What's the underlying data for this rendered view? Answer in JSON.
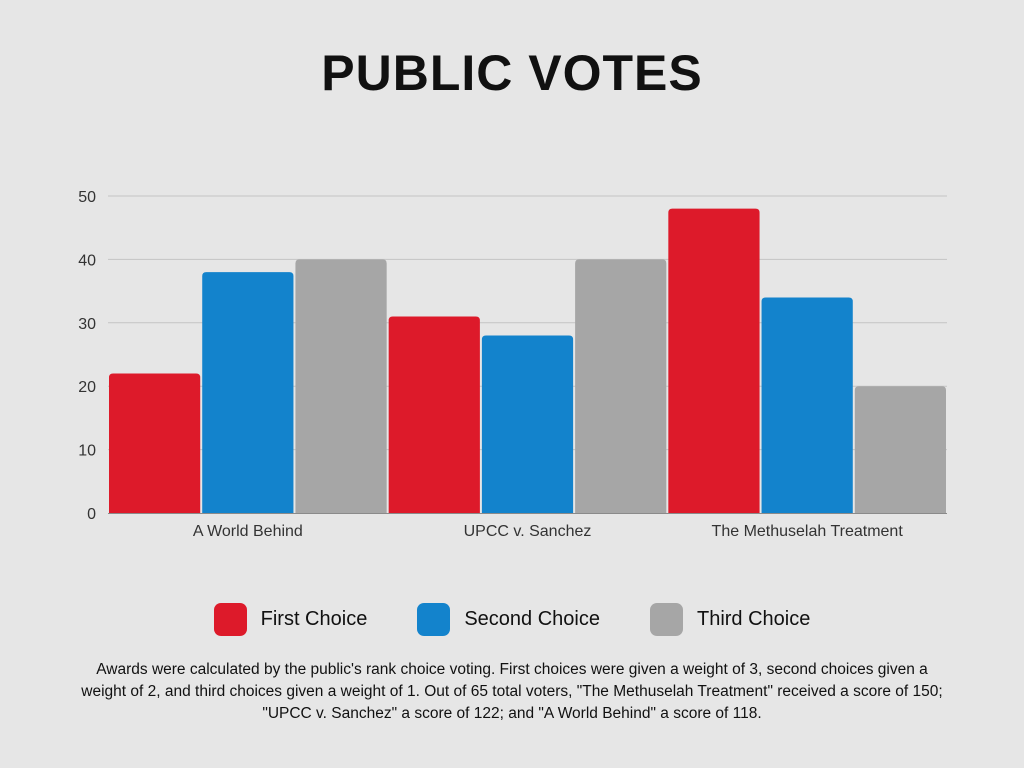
{
  "chart_data": {
    "type": "bar",
    "title": "PUBLIC VOTES",
    "categories": [
      "A World Behind",
      "UPCC v. Sanchez",
      "The Methuselah Treatment"
    ],
    "series": [
      {
        "name": "First Choice",
        "values": [
          22,
          31,
          48
        ],
        "color": "#dd1a2a"
      },
      {
        "name": "Second Choice",
        "values": [
          38,
          28,
          34
        ],
        "color": "#1383cc"
      },
      {
        "name": "Third Choice",
        "values": [
          40,
          40,
          20
        ],
        "color": "#a6a6a6"
      }
    ],
    "y_ticks": [
      "0",
      "10",
      "20",
      "30",
      "40",
      "50"
    ],
    "ylim": [
      0,
      50
    ],
    "grid": true,
    "legend_position": "bottom"
  },
  "footnote": "Awards were calculated by the public's rank choice voting. First choices were given a weight of 3, second choices given a weight of 2, and third choices given a weight of 1. Out of 65 total voters, \"The Methuselah Treatment\" received a score of 150; \"UPCC v. Sanchez\" a score of 122; and \"A World Behind\" a score of 118."
}
